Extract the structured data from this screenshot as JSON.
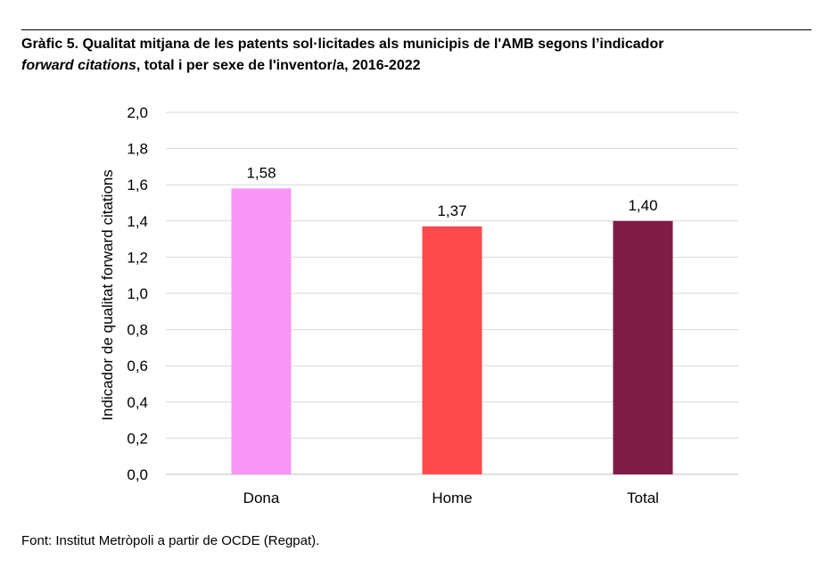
{
  "title": {
    "line1": "Gràfic 5. Qualitat mitjana de les patents sol·licitades als municipis de l'AMB segons l’indicador",
    "italic_part": "forward citations",
    "line2_rest": ", total i per sexe de l'inventor/a, 2016-2022"
  },
  "source": "Font: Institut Metròpoli a partir de OCDE (Regpat).",
  "chart_data": {
    "type": "bar",
    "ylabel": "Indicador de qualitat forward citations",
    "xlabel": "",
    "ylim": [
      0,
      2.0
    ],
    "yticks": [
      "0,0",
      "0,2",
      "0,4",
      "0,6",
      "0,8",
      "1,0",
      "1,2",
      "1,4",
      "1,6",
      "1,8",
      "2,0"
    ],
    "categories": [
      "Dona",
      "Home",
      "Total"
    ],
    "values": [
      1.58,
      1.37,
      1.4
    ],
    "value_labels": [
      "1,58",
      "1,37",
      "1,40"
    ],
    "colors": [
      "#F896F6",
      "#FF4A4D",
      "#7E1D45"
    ],
    "grid": true
  }
}
